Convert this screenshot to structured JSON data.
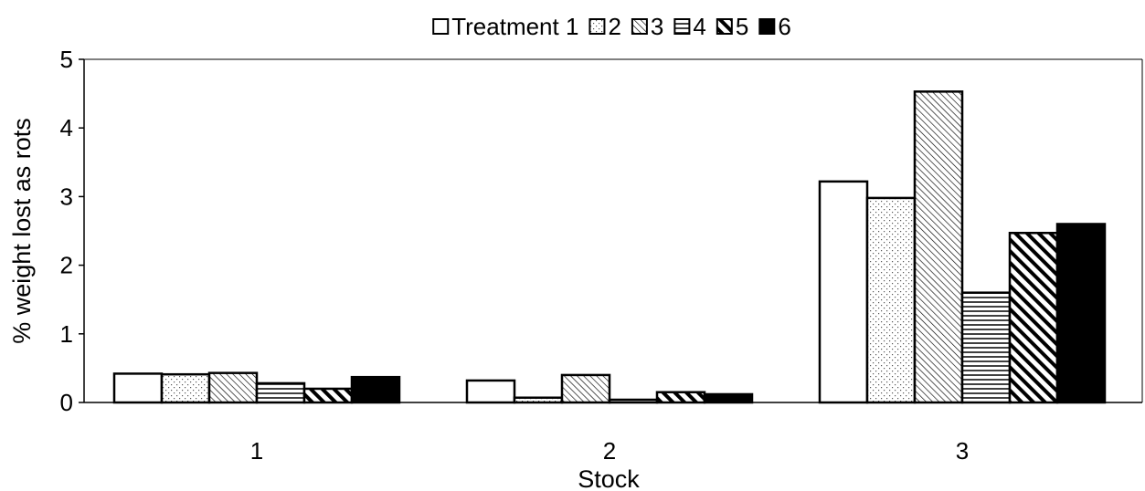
{
  "chart_data": {
    "type": "bar",
    "xlabel": "Stock",
    "ylabel": "% weight lost as rots",
    "categories": [
      "1",
      "2",
      "3"
    ],
    "ylim": [
      0,
      5
    ],
    "yticks": [
      "0",
      "1",
      "2",
      "3",
      "4",
      "5"
    ],
    "grid": false,
    "legend_position": "top",
    "series": [
      {
        "name": "Treatment 1",
        "pattern": "none",
        "values": [
          0.42,
          0.32,
          3.22
        ]
      },
      {
        "name": "2",
        "pattern": "dots",
        "values": [
          0.41,
          0.07,
          2.98
        ]
      },
      {
        "name": "3",
        "pattern": "diagonal-fine",
        "values": [
          0.43,
          0.4,
          4.53
        ]
      },
      {
        "name": "4",
        "pattern": "horizontal",
        "values": [
          0.28,
          0.04,
          1.6
        ]
      },
      {
        "name": "5",
        "pattern": "diagonal-wide",
        "values": [
          0.2,
          0.15,
          2.47
        ]
      },
      {
        "name": "6",
        "pattern": "solid",
        "values": [
          0.37,
          0.12,
          2.6
        ]
      }
    ]
  }
}
